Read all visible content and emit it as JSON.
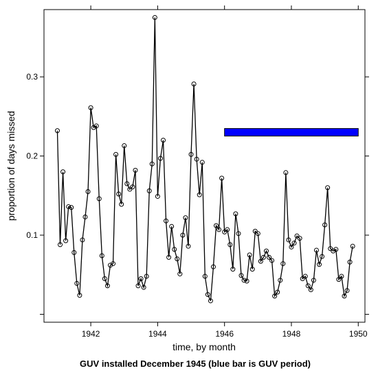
{
  "chart_data": {
    "type": "line",
    "xlabel": "time, by month",
    "ylabel": "proportion of days missed",
    "caption": "GUV installed December 1945 (blue bar is GUV period)",
    "xlim": [
      1940.6,
      1950.2
    ],
    "ylim": [
      -0.01,
      0.385
    ],
    "x_ticks": [
      1942,
      1944,
      1946,
      1948,
      1950
    ],
    "x_tick_labels": [
      "1942",
      "1944",
      "1946",
      "1948",
      "1950"
    ],
    "y_ticks": [
      0.1,
      0.2,
      0.3
    ],
    "y_tick_labels": [
      "0.1",
      "0.2",
      "0.3"
    ],
    "marker": "open-circle",
    "line_color": "#000000",
    "bar_color": "#0000ff",
    "guv_period": {
      "x_start": 1946,
      "x_end": 1950,
      "y": 0.23
    },
    "series": [
      {
        "x_start": 1941,
        "step": 0.08333,
        "values": [
          0.232,
          0.088,
          0.18,
          0.093,
          0.136,
          0.135,
          0.078,
          0.039,
          0.024,
          0.094,
          0.123,
          0.155,
          0.261,
          0.236,
          0.238,
          0.146,
          0.074,
          0.045,
          0.036,
          0.062,
          0.064,
          0.202,
          0.152,
          0.139,
          0.213,
          0.165,
          0.158,
          0.161,
          0.182,
          0.036,
          0.045,
          0.034,
          0.048,
          0.156,
          0.19,
          0.375,
          0.149,
          0.197,
          0.22,
          0.118,
          0.072,
          0.111,
          0.082,
          0.07,
          0.051,
          0.1,
          0.122,
          0.086,
          0.202,
          0.291,
          0.196,
          0.151,
          0.192,
          0.048,
          0.025,
          0.017,
          0.06,
          0.112,
          0.107,
          0.172,
          0.104,
          0.107,
          0.088,
          0.057,
          0.127,
          0.102,
          0.049,
          0.043,
          0.042,
          0.075,
          0.057,
          0.105,
          0.102,
          0.067,
          0.072,
          0.08,
          0.072,
          0.068,
          0.023,
          0.028,
          0.043,
          0.064,
          0.179,
          0.094,
          0.085,
          0.09,
          0.099,
          0.096,
          0.045,
          0.048,
          0.036,
          0.031,
          0.043,
          0.081,
          0.063,
          0.073,
          0.113,
          0.16,
          0.083,
          0.08,
          0.082,
          0.044,
          0.048,
          0.023,
          0.03,
          0.066,
          0.086
        ]
      }
    ]
  }
}
